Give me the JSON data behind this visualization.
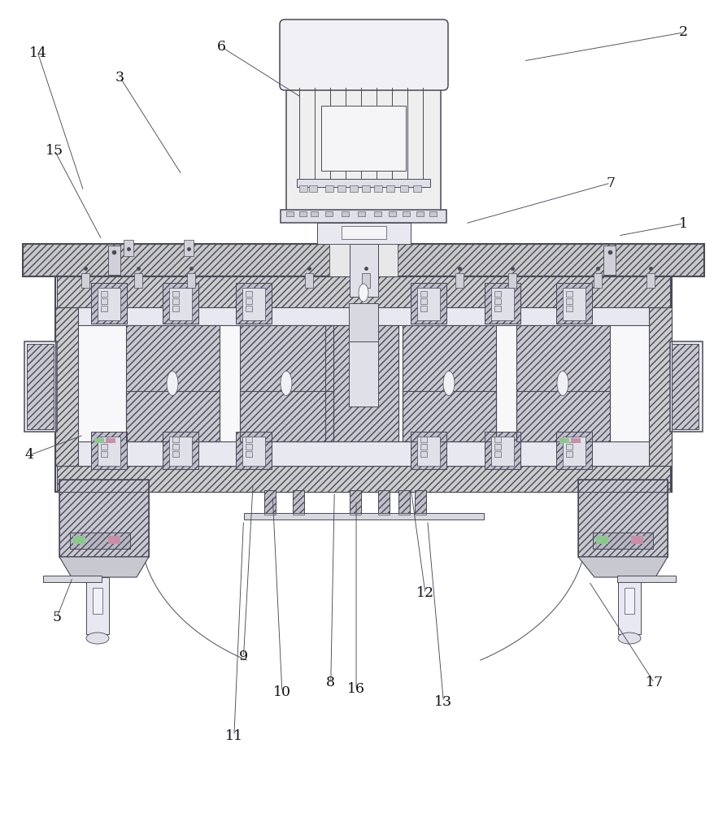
{
  "bg_color": "#ffffff",
  "line_color": "#4a4a5a",
  "fig_width": 8.94,
  "fig_height": 10.0,
  "labels": {
    "1": {
      "text": [
        0.94,
        0.275
      ],
      "point": [
        0.85,
        0.29
      ]
    },
    "2": {
      "text": [
        0.94,
        0.04
      ],
      "point": [
        0.72,
        0.075
      ]
    },
    "3": {
      "text": [
        0.165,
        0.095
      ],
      "point": [
        0.25,
        0.215
      ]
    },
    "4": {
      "text": [
        0.04,
        0.56
      ],
      "point": [
        0.115,
        0.535
      ]
    },
    "5": {
      "text": [
        0.078,
        0.76
      ],
      "point": [
        0.1,
        0.71
      ]
    },
    "6": {
      "text": [
        0.305,
        0.058
      ],
      "point": [
        0.415,
        0.12
      ]
    },
    "7": {
      "text": [
        0.84,
        0.225
      ],
      "point": [
        0.64,
        0.275
      ]
    },
    "8": {
      "text": [
        0.455,
        0.84
      ],
      "point": [
        0.46,
        0.605
      ]
    },
    "9": {
      "text": [
        0.335,
        0.808
      ],
      "point": [
        0.348,
        0.595
      ]
    },
    "10": {
      "text": [
        0.388,
        0.851
      ],
      "point": [
        0.375,
        0.61
      ]
    },
    "11": {
      "text": [
        0.322,
        0.905
      ],
      "point": [
        0.335,
        0.64
      ]
    },
    "12": {
      "text": [
        0.585,
        0.73
      ],
      "point": [
        0.565,
        0.6
      ]
    },
    "13": {
      "text": [
        0.61,
        0.863
      ],
      "point": [
        0.588,
        0.64
      ]
    },
    "14": {
      "text": [
        0.052,
        0.065
      ],
      "point": [
        0.115,
        0.235
      ]
    },
    "15": {
      "text": [
        0.075,
        0.185
      ],
      "point": [
        0.14,
        0.295
      ]
    },
    "16": {
      "text": [
        0.49,
        0.848
      ],
      "point": [
        0.49,
        0.615
      ]
    },
    "17": {
      "text": [
        0.9,
        0.84
      ],
      "point": [
        0.81,
        0.715
      ]
    }
  }
}
